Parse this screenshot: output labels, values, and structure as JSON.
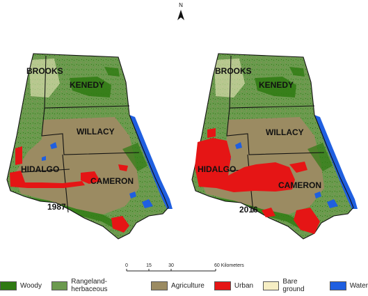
{
  "north_arrow": {
    "letter": "N"
  },
  "maps": [
    {
      "year": "1987",
      "counties": [
        "BROOKS",
        "KENEDY",
        "WILLACY",
        "HIDALGO",
        "CAMERON"
      ]
    },
    {
      "year": "2016",
      "counties": [
        "BROOKS",
        "KENEDY",
        "WILLACY",
        "HIDALGO",
        "CAMERON"
      ]
    }
  ],
  "scale_bar": {
    "ticks": [
      "0",
      "15",
      "30",
      "60 Kilometers"
    ]
  },
  "legend": [
    {
      "label": "Woody",
      "color": "#2e7a12"
    },
    {
      "label": "Rangeland-herbaceous",
      "color": "#6b9a4e"
    },
    {
      "label": "Agriculture",
      "color": "#9b8b62"
    },
    {
      "label": "Urban",
      "color": "#e51515"
    },
    {
      "label": "Bare ground",
      "color": "#f6eec4"
    },
    {
      "label": "Water",
      "color": "#1f5fe0"
    }
  ]
}
